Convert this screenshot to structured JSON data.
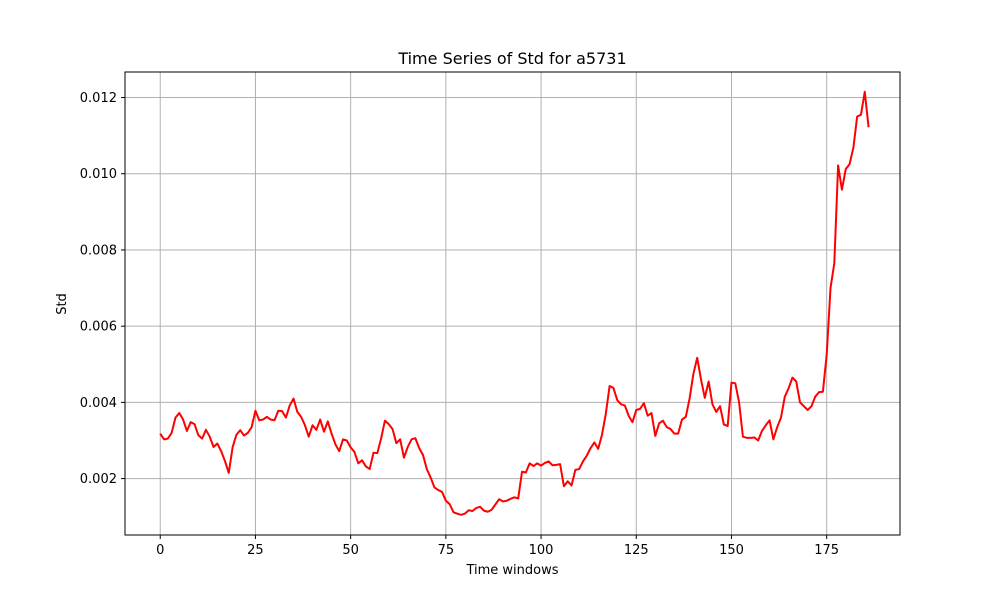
{
  "chart_data": {
    "type": "line",
    "title": "Time Series of Std for a5731",
    "xlabel": "Time windows",
    "ylabel": "Std",
    "xlim": [
      -9.25,
      194.25
    ],
    "ylim": [
      0.00052,
      0.01267
    ],
    "x_ticks": [
      0,
      25,
      50,
      75,
      100,
      125,
      150,
      175
    ],
    "y_ticks": [
      0.002,
      0.004,
      0.006,
      0.008,
      0.01,
      0.012
    ],
    "y_tick_labels": [
      "0.002",
      "0.004",
      "0.006",
      "0.008",
      "0.010",
      "0.012"
    ],
    "grid": true,
    "legend": null,
    "series": [
      {
        "color": "#ff0000",
        "x_start": 0,
        "values": [
          0.00318,
          0.00303,
          0.00305,
          0.0032,
          0.0036,
          0.00372,
          0.00355,
          0.00325,
          0.00348,
          0.00343,
          0.00314,
          0.00305,
          0.00328,
          0.0031,
          0.00283,
          0.00292,
          0.00272,
          0.00246,
          0.00215,
          0.00282,
          0.00315,
          0.00327,
          0.00313,
          0.0032,
          0.00335,
          0.00378,
          0.00353,
          0.00355,
          0.00362,
          0.00355,
          0.00353,
          0.00378,
          0.00377,
          0.0036,
          0.00392,
          0.0041,
          0.00375,
          0.00362,
          0.0034,
          0.0031,
          0.0034,
          0.00328,
          0.00355,
          0.00323,
          0.0035,
          0.00318,
          0.0029,
          0.00272,
          0.00303,
          0.003,
          0.00282,
          0.0027,
          0.0024,
          0.00248,
          0.00232,
          0.00225,
          0.00268,
          0.00267,
          0.00305,
          0.00352,
          0.00343,
          0.0033,
          0.00293,
          0.00303,
          0.00255,
          0.00283,
          0.00303,
          0.00306,
          0.0028,
          0.00262,
          0.00225,
          0.00203,
          0.00177,
          0.0017,
          0.00165,
          0.00142,
          0.00133,
          0.00112,
          0.00108,
          0.00105,
          0.00108,
          0.00117,
          0.00115,
          0.00123,
          0.00126,
          0.00116,
          0.00113,
          0.00118,
          0.00132,
          0.00146,
          0.0014,
          0.00142,
          0.00147,
          0.00151,
          0.00148,
          0.00218,
          0.00216,
          0.0024,
          0.00233,
          0.0024,
          0.00234,
          0.00241,
          0.00245,
          0.00235,
          0.00236,
          0.00238,
          0.0018,
          0.00193,
          0.00182,
          0.00223,
          0.00225,
          0.00245,
          0.0026,
          0.0028,
          0.00295,
          0.00278,
          0.00315,
          0.0037,
          0.00443,
          0.00438,
          0.00406,
          0.00395,
          0.00392,
          0.00365,
          0.00348,
          0.0038,
          0.00383,
          0.00398,
          0.00365,
          0.00372,
          0.00312,
          0.00345,
          0.00352,
          0.00335,
          0.0033,
          0.00318,
          0.00318,
          0.00355,
          0.00362,
          0.0041,
          0.00475,
          0.00517,
          0.0046,
          0.00412,
          0.00455,
          0.00395,
          0.00375,
          0.0039,
          0.00342,
          0.00338,
          0.00452,
          0.0045,
          0.004,
          0.0031,
          0.00307,
          0.00307,
          0.00308,
          0.003,
          0.00325,
          0.0034,
          0.00353,
          0.00303,
          0.00335,
          0.0036,
          0.00415,
          0.00437,
          0.00465,
          0.00455,
          0.004,
          0.0039,
          0.0038,
          0.0039,
          0.00415,
          0.00427,
          0.00428,
          0.00525,
          0.007,
          0.00765,
          0.01022,
          0.00958,
          0.01012,
          0.01025,
          0.01068,
          0.0115,
          0.01155,
          0.01215,
          0.01122
        ]
      }
    ]
  }
}
